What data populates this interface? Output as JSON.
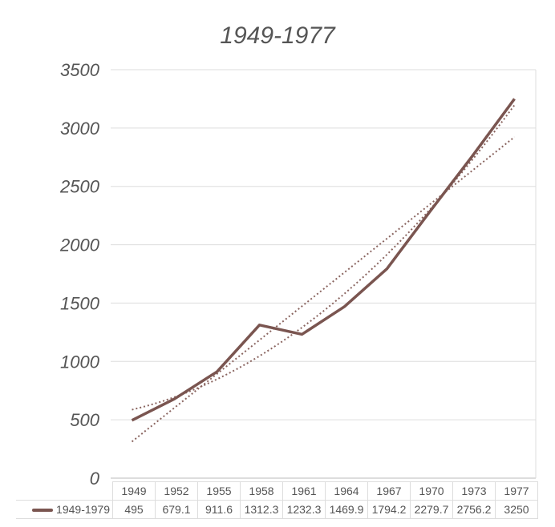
{
  "chart_data": {
    "type": "line",
    "title": "1949-1977",
    "categories": [
      "1949",
      "1952",
      "1955",
      "1958",
      "1961",
      "1964",
      "1967",
      "1970",
      "1973",
      "1977"
    ],
    "series": [
      {
        "name": "1949-1979",
        "values": [
          495,
          679.1,
          911.6,
          1312.3,
          1232.3,
          1469.9,
          1794.2,
          2279.7,
          2756.2,
          3250
        ],
        "color": "#7a5550"
      }
    ],
    "trendlines": [
      "linear",
      "polynomial"
    ],
    "ylim": [
      0,
      3500
    ],
    "yticks": [
      0,
      500,
      1000,
      1500,
      2000,
      2500,
      3000,
      3500
    ],
    "grid": true,
    "legend": "data-table"
  }
}
